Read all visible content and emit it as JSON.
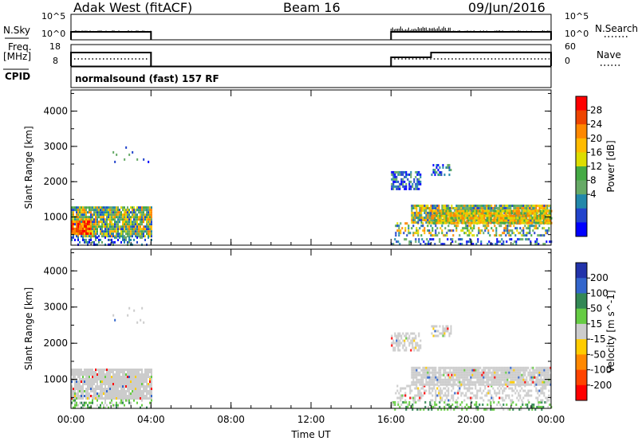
{
  "header": {
    "title": "Adak West (fitACF)",
    "beam": "Beam 16",
    "date": "09/Jun/2016"
  },
  "panel_labels": {
    "nsky": "N.Sky",
    "nsearch": "N.Search",
    "freq": "Freq.",
    "freq_unit": "[MHz]",
    "cpid": "CPID",
    "nave": "Nave",
    "cpid_text": "normalsound (fast) 157 RF"
  },
  "small_ticks": {
    "noise_top": "10^5",
    "noise_bottom": "10^0",
    "freq_top": "18",
    "freq_bottom": "8",
    "nave_top": "60",
    "nave_bottom": "0"
  },
  "colorbar_power": {
    "label": "Power [dB]",
    "ticks": [
      "28",
      "24",
      "20",
      "16",
      "12",
      "8",
      "4"
    ],
    "colors": [
      "#ff0000",
      "#ee4400",
      "#ff8800",
      "#ffbb00",
      "#dddd00",
      "#44aa44",
      "#66aa66",
      "#2288aa",
      "#2244cc",
      "#0000ff"
    ]
  },
  "colorbar_velocity": {
    "label": "Velocity [m s^-1]",
    "ticks": [
      "200",
      "100",
      "50",
      "15",
      "-15",
      "-50",
      "-100",
      "-200"
    ],
    "colors": [
      "#2233aa",
      "#3366cc",
      "#338855",
      "#66cc44",
      "#cccccc",
      "#ffcc00",
      "#ff8800",
      "#ff4400",
      "#ff0000"
    ]
  },
  "chart_data": {
    "type": "heatmap",
    "xlabel": "Time UT",
    "ylabel": "Slant Range [km]",
    "x_ticks": [
      "00:00",
      "04:00",
      "08:00",
      "12:00",
      "16:00",
      "20:00",
      "00:00"
    ],
    "y_ticks": [
      "1000",
      "2000",
      "3000",
      "4000"
    ],
    "xlim_hours": [
      0,
      24
    ],
    "ylim_km": [
      200,
      4600
    ],
    "data_intervals_hours": [
      [
        0,
        4
      ],
      [
        16,
        24
      ]
    ],
    "nave_step_hour": 18,
    "panels": [
      {
        "name": "Power",
        "unit": "dB"
      },
      {
        "name": "Velocity",
        "unit": "m s^-1"
      }
    ]
  }
}
